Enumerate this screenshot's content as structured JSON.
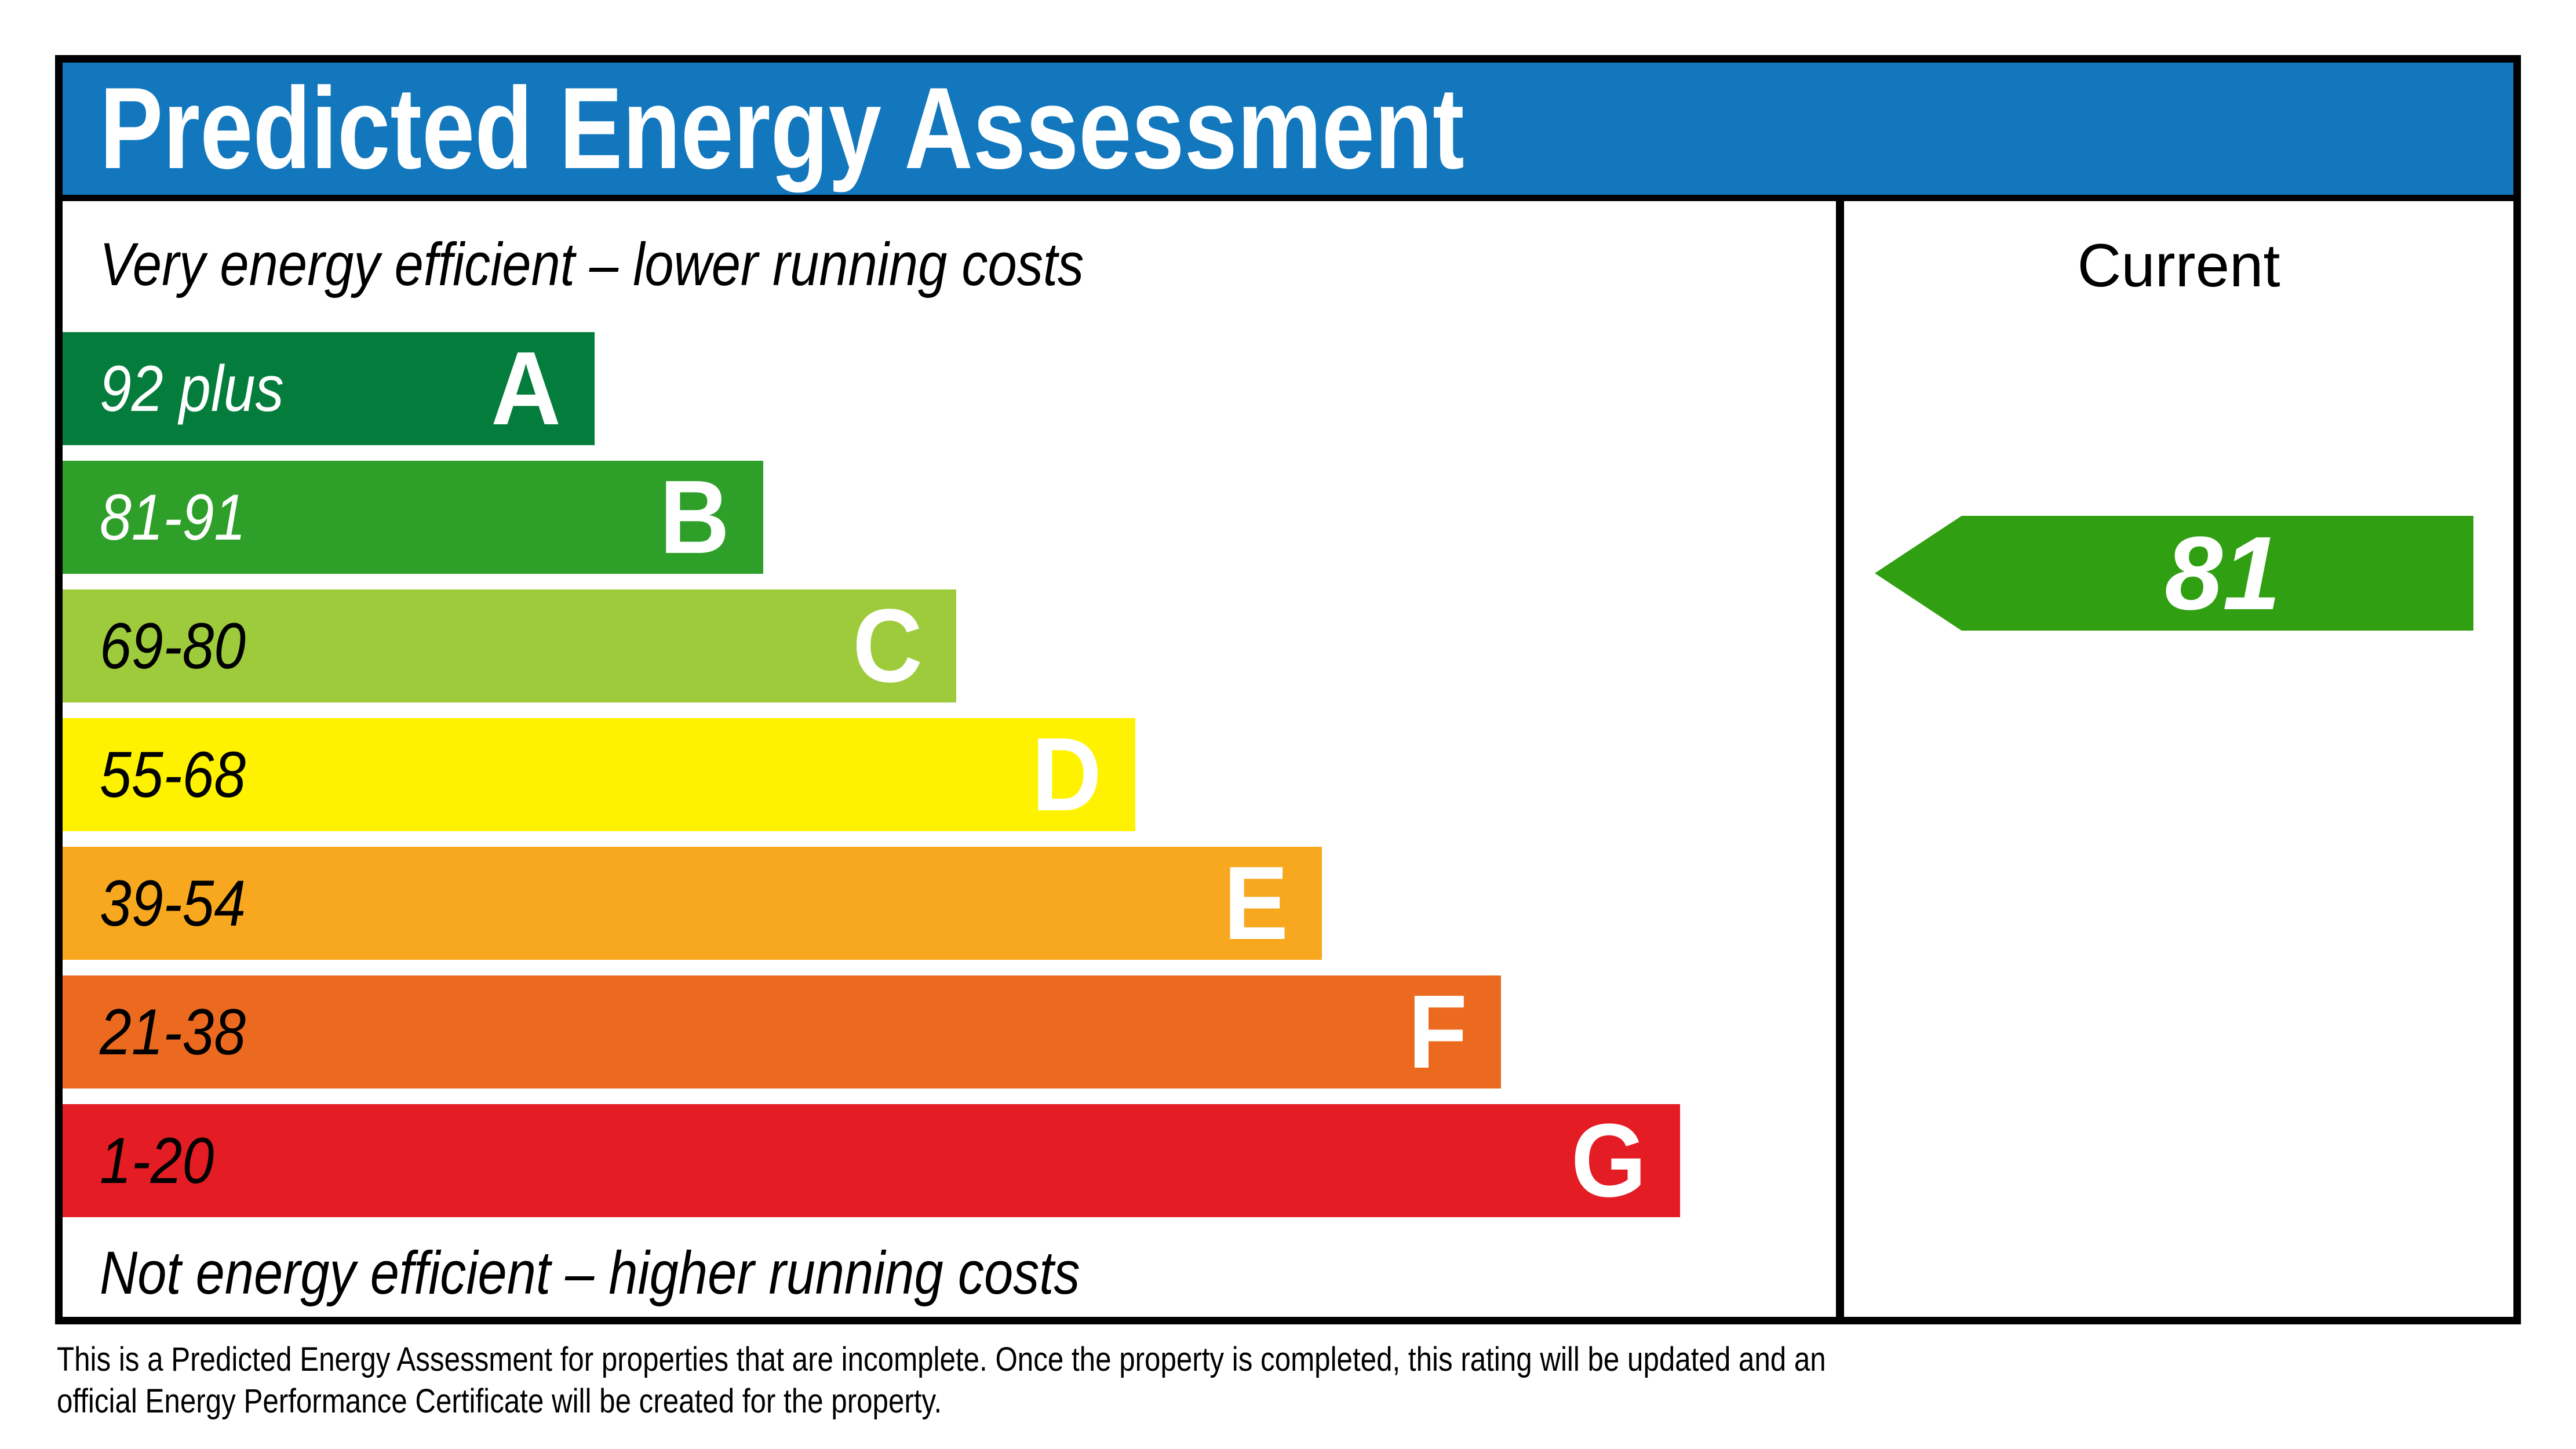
{
  "header": {
    "title": "Predicted Energy Assessment",
    "bar_color": "#1277bd"
  },
  "chart_data": {
    "type": "bar",
    "title": "Predicted Energy Assessment",
    "top_caption": "Very energy efficient – lower running costs",
    "bottom_caption": "Not energy efficient – higher running costs",
    "bands": [
      {
        "letter": "A",
        "range": "92 plus",
        "range_min": 92,
        "range_max": 100,
        "color": "#047d3c",
        "text_color": "#ffffff",
        "width_pct": 30
      },
      {
        "letter": "B",
        "range": "81-91",
        "range_min": 81,
        "range_max": 91,
        "color": "#2e9f29",
        "text_color": "#ffffff",
        "width_pct": 39.5
      },
      {
        "letter": "C",
        "range": "69-80",
        "range_min": 69,
        "range_max": 80,
        "color": "#9ecb3c",
        "text_color": "#000000",
        "width_pct": 50.4
      },
      {
        "letter": "D",
        "range": "55-68",
        "range_min": 55,
        "range_max": 68,
        "color": "#fff200",
        "text_color": "#000000",
        "width_pct": 60.5
      },
      {
        "letter": "E",
        "range": "39-54",
        "range_min": 39,
        "range_max": 54,
        "color": "#f7a81e",
        "text_color": "#000000",
        "width_pct": 71
      },
      {
        "letter": "F",
        "range": "21-38",
        "range_min": 21,
        "range_max": 38,
        "color": "#ec6a1f",
        "text_color": "#000000",
        "width_pct": 81.1
      },
      {
        "letter": "G",
        "range": "1-20",
        "range_min": 1,
        "range_max": 20,
        "color": "#e31d23",
        "text_color": "#000000",
        "width_pct": 91.2
      }
    ],
    "current": {
      "label": "Current",
      "value": "81",
      "band": "B",
      "arrow_color": "#30a012",
      "arrow_direction": "left"
    }
  },
  "footer": {
    "line1": "This is a Predicted Energy Assessment for properties that are incomplete. Once the property is completed, this rating will be updated and an",
    "line2": "official Energy Performance Certificate will be created for the property."
  }
}
